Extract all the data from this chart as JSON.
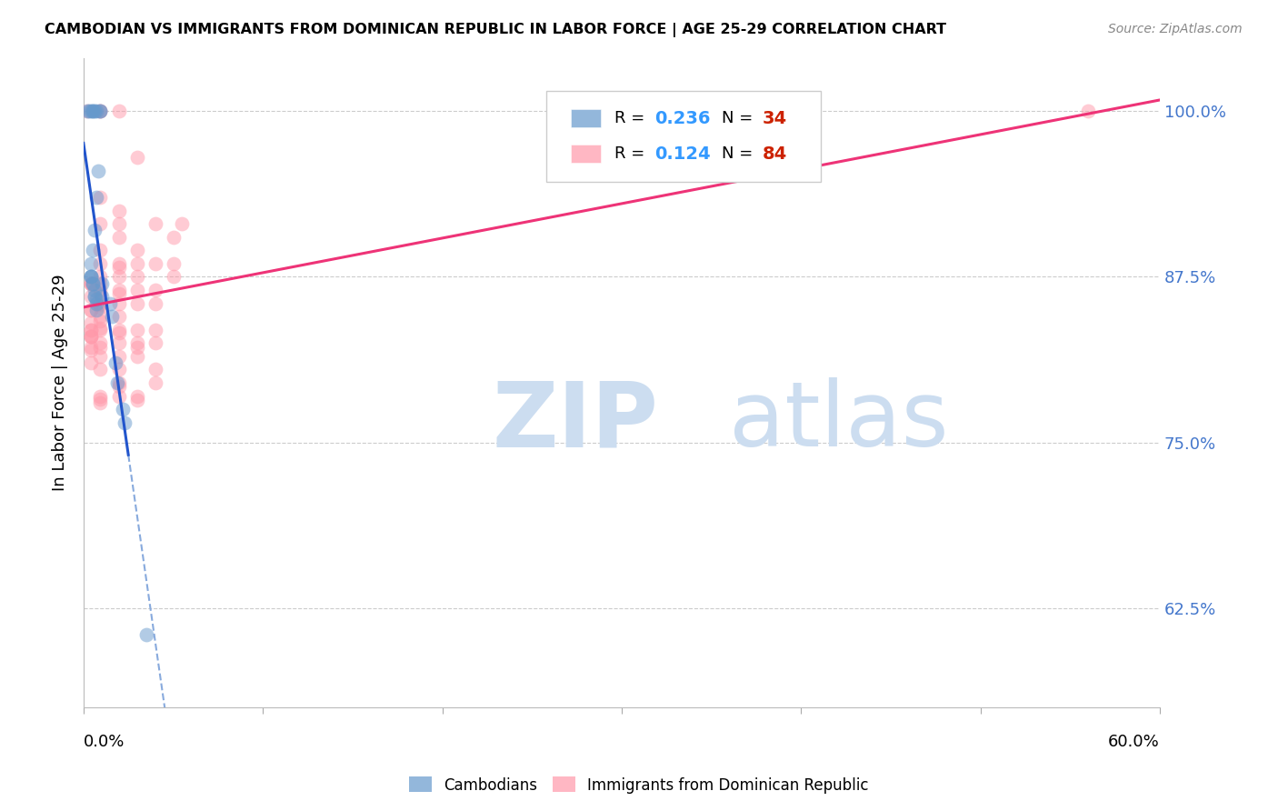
{
  "title": "CAMBODIAN VS IMMIGRANTS FROM DOMINICAN REPUBLIC IN LABOR FORCE | AGE 25-29 CORRELATION CHART",
  "source_text": "Source: ZipAtlas.com",
  "ylabel": "In Labor Force | Age 25-29",
  "x_lim": [
    0.0,
    0.6
  ],
  "y_lim": [
    0.55,
    1.04
  ],
  "y_ticks": [
    0.625,
    0.75,
    0.875,
    1.0
  ],
  "y_tick_labels": [
    "62.5%",
    "75.0%",
    "87.5%",
    "100.0%"
  ],
  "legend_r_cambodian": "0.236",
  "legend_n_cambodian": "34",
  "legend_r_dominican": "0.124",
  "legend_n_dominican": "84",
  "watermark_zip": "ZIP",
  "watermark_atlas": "atlas",
  "watermark_color": "#ccddf0",
  "blue_color": "#6699cc",
  "pink_color": "#ff99aa",
  "trendline_blue": "#2255cc",
  "trendline_pink": "#ee3377",
  "trendline_blue_dashed": "#88aadd",
  "legend_r_color": "#3399ff",
  "legend_n_color": "#cc2200",
  "cambodian_points": [
    [
      0.002,
      1.0
    ],
    [
      0.003,
      1.0
    ],
    [
      0.004,
      1.0
    ],
    [
      0.005,
      1.0
    ],
    [
      0.005,
      1.0
    ],
    [
      0.006,
      1.0
    ],
    [
      0.007,
      1.0
    ],
    [
      0.009,
      1.0
    ],
    [
      0.009,
      1.0
    ],
    [
      0.008,
      0.955
    ],
    [
      0.007,
      0.935
    ],
    [
      0.006,
      0.91
    ],
    [
      0.005,
      0.895
    ],
    [
      0.004,
      0.885
    ],
    [
      0.004,
      0.875
    ],
    [
      0.004,
      0.875
    ],
    [
      0.004,
      0.875
    ],
    [
      0.005,
      0.87
    ],
    [
      0.005,
      0.87
    ],
    [
      0.006,
      0.865
    ],
    [
      0.006,
      0.86
    ],
    [
      0.006,
      0.86
    ],
    [
      0.007,
      0.858
    ],
    [
      0.007,
      0.855
    ],
    [
      0.007,
      0.85
    ],
    [
      0.01,
      0.87
    ],
    [
      0.01,
      0.86
    ],
    [
      0.015,
      0.855
    ],
    [
      0.016,
      0.845
    ],
    [
      0.018,
      0.81
    ],
    [
      0.019,
      0.795
    ],
    [
      0.022,
      0.775
    ],
    [
      0.023,
      0.765
    ],
    [
      0.035,
      0.605
    ]
  ],
  "dominican_points": [
    [
      0.002,
      1.0
    ],
    [
      0.004,
      0.87
    ],
    [
      0.004,
      0.87
    ],
    [
      0.004,
      0.87
    ],
    [
      0.004,
      0.86
    ],
    [
      0.004,
      0.85
    ],
    [
      0.004,
      0.85
    ],
    [
      0.004,
      0.84
    ],
    [
      0.004,
      0.835
    ],
    [
      0.004,
      0.835
    ],
    [
      0.004,
      0.83
    ],
    [
      0.004,
      0.83
    ],
    [
      0.004,
      0.83
    ],
    [
      0.004,
      0.822
    ],
    [
      0.004,
      0.82
    ],
    [
      0.004,
      0.81
    ],
    [
      0.009,
      1.0
    ],
    [
      0.009,
      1.0
    ],
    [
      0.009,
      0.935
    ],
    [
      0.009,
      0.915
    ],
    [
      0.009,
      0.895
    ],
    [
      0.009,
      0.885
    ],
    [
      0.009,
      0.875
    ],
    [
      0.009,
      0.87
    ],
    [
      0.009,
      0.865
    ],
    [
      0.009,
      0.862
    ],
    [
      0.009,
      0.855
    ],
    [
      0.009,
      0.854
    ],
    [
      0.009,
      0.852
    ],
    [
      0.009,
      0.845
    ],
    [
      0.009,
      0.842
    ],
    [
      0.009,
      0.836
    ],
    [
      0.009,
      0.835
    ],
    [
      0.009,
      0.825
    ],
    [
      0.009,
      0.822
    ],
    [
      0.009,
      0.815
    ],
    [
      0.009,
      0.805
    ],
    [
      0.009,
      0.785
    ],
    [
      0.009,
      0.783
    ],
    [
      0.009,
      0.78
    ],
    [
      0.02,
      1.0
    ],
    [
      0.02,
      0.925
    ],
    [
      0.02,
      0.915
    ],
    [
      0.02,
      0.905
    ],
    [
      0.02,
      0.885
    ],
    [
      0.02,
      0.882
    ],
    [
      0.02,
      0.875
    ],
    [
      0.02,
      0.865
    ],
    [
      0.02,
      0.862
    ],
    [
      0.02,
      0.855
    ],
    [
      0.02,
      0.845
    ],
    [
      0.02,
      0.835
    ],
    [
      0.02,
      0.833
    ],
    [
      0.02,
      0.825
    ],
    [
      0.02,
      0.815
    ],
    [
      0.02,
      0.805
    ],
    [
      0.02,
      0.795
    ],
    [
      0.02,
      0.792
    ],
    [
      0.02,
      0.785
    ],
    [
      0.03,
      0.965
    ],
    [
      0.03,
      0.895
    ],
    [
      0.03,
      0.885
    ],
    [
      0.03,
      0.875
    ],
    [
      0.03,
      0.865
    ],
    [
      0.03,
      0.855
    ],
    [
      0.03,
      0.835
    ],
    [
      0.03,
      0.825
    ],
    [
      0.03,
      0.822
    ],
    [
      0.03,
      0.815
    ],
    [
      0.03,
      0.785
    ],
    [
      0.03,
      0.782
    ],
    [
      0.04,
      0.915
    ],
    [
      0.04,
      0.885
    ],
    [
      0.04,
      0.865
    ],
    [
      0.04,
      0.855
    ],
    [
      0.04,
      0.835
    ],
    [
      0.04,
      0.825
    ],
    [
      0.04,
      0.805
    ],
    [
      0.04,
      0.795
    ],
    [
      0.05,
      0.905
    ],
    [
      0.05,
      0.885
    ],
    [
      0.05,
      0.875
    ],
    [
      0.055,
      0.915
    ],
    [
      0.56,
      1.0
    ]
  ]
}
